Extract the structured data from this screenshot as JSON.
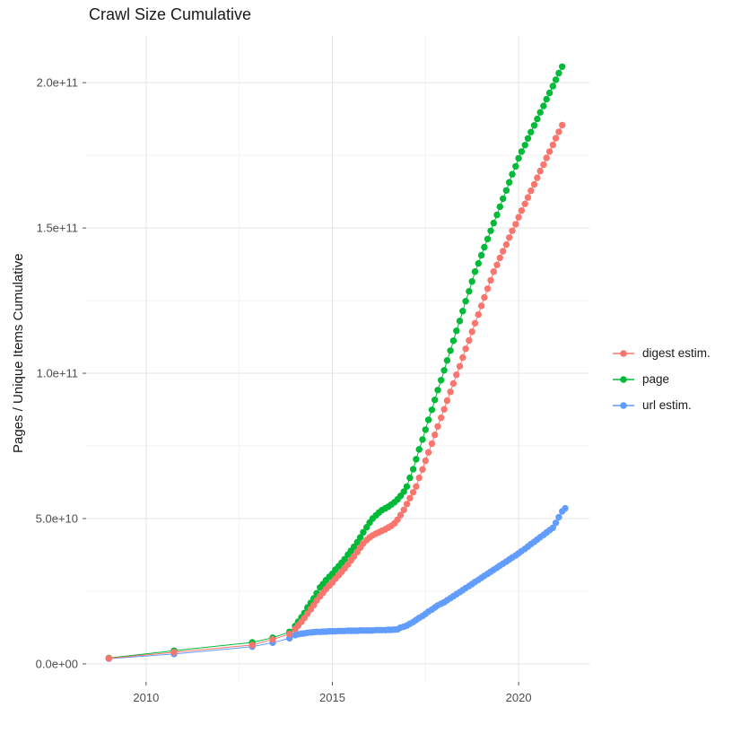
{
  "chart_data": {
    "type": "scatter",
    "title": "Crawl Size Cumulative",
    "xlabel": "",
    "ylabel": "Pages / Unique Items Cumulative",
    "value_unit": "pages, values stored in billions (1e9)",
    "grid": true,
    "legend_position": "right",
    "xlim": [
      2008.39,
      2021.9
    ],
    "ylim_billions": [
      -6.2,
      216.1
    ],
    "x_major_ticks": [
      {
        "value": 2010,
        "label": "2010"
      },
      {
        "value": 2015,
        "label": "2015"
      },
      {
        "value": 2020,
        "label": "2020"
      }
    ],
    "x_minor_ticks": [
      2012.5,
      2017.5
    ],
    "y_major_ticks": [
      {
        "value_billions": 0,
        "label": "0.0e+00"
      },
      {
        "value_billions": 50,
        "label": "5.0e+10"
      },
      {
        "value_billions": 100,
        "label": "1.0e+11"
      },
      {
        "value_billions": 150,
        "label": "1.5e+11"
      },
      {
        "value_billions": 200,
        "label": "2.0e+11"
      }
    ],
    "y_minor_ticks_billions": [
      25,
      75,
      125,
      175
    ],
    "series": [
      {
        "name": "digest estim.",
        "color": "#F8766D",
        "draw_order": 3,
        "points": [
          [
            2009.0,
            1.9
          ],
          [
            2010.75,
            4.0
          ],
          [
            2012.85,
            6.5
          ],
          [
            2013.4,
            8.4
          ],
          [
            2013.85,
            10.3
          ],
          [
            2014.0,
            12.0
          ],
          [
            2014.08,
            13.2
          ],
          [
            2014.17,
            14.5
          ],
          [
            2014.25,
            15.8
          ],
          [
            2014.33,
            17.3
          ],
          [
            2014.42,
            18.8
          ],
          [
            2014.5,
            20.2
          ],
          [
            2014.58,
            21.8
          ],
          [
            2014.67,
            23.3
          ],
          [
            2014.75,
            24.5
          ],
          [
            2014.83,
            25.8
          ],
          [
            2014.92,
            27.0
          ],
          [
            2015.0,
            28.0
          ],
          [
            2015.08,
            29.3
          ],
          [
            2015.17,
            30.5
          ],
          [
            2015.25,
            31.7
          ],
          [
            2015.33,
            32.9
          ],
          [
            2015.42,
            34.2
          ],
          [
            2015.5,
            35.6
          ],
          [
            2015.58,
            37.0
          ],
          [
            2015.67,
            38.5
          ],
          [
            2015.75,
            40.0
          ],
          [
            2015.83,
            41.4
          ],
          [
            2015.92,
            42.6
          ],
          [
            2016.0,
            43.5
          ],
          [
            2016.08,
            44.2
          ],
          [
            2016.17,
            44.8
          ],
          [
            2016.25,
            45.3
          ],
          [
            2016.33,
            45.8
          ],
          [
            2016.42,
            46.3
          ],
          [
            2016.5,
            46.9
          ],
          [
            2016.58,
            47.5
          ],
          [
            2016.67,
            48.4
          ],
          [
            2016.75,
            49.6
          ],
          [
            2016.83,
            51.2
          ],
          [
            2016.92,
            53.0
          ],
          [
            2017.0,
            55.0
          ],
          [
            2017.08,
            57.0
          ],
          [
            2017.17,
            59.0
          ],
          [
            2017.25,
            61.0
          ],
          [
            2017.33,
            64.0
          ],
          [
            2017.42,
            66.9
          ],
          [
            2017.5,
            69.9
          ],
          [
            2017.58,
            72.8
          ],
          [
            2017.67,
            75.8
          ],
          [
            2017.75,
            78.8
          ],
          [
            2017.83,
            81.7
          ],
          [
            2017.92,
            84.7
          ],
          [
            2018.0,
            87.6
          ],
          [
            2018.08,
            90.6
          ],
          [
            2018.17,
            93.6
          ],
          [
            2018.25,
            96.5
          ],
          [
            2018.33,
            99.5
          ],
          [
            2018.42,
            102.4
          ],
          [
            2018.5,
            105.4
          ],
          [
            2018.58,
            108.4
          ],
          [
            2018.67,
            111.3
          ],
          [
            2018.75,
            114.3
          ],
          [
            2018.83,
            117.2
          ],
          [
            2018.92,
            120.2
          ],
          [
            2019.0,
            123.2
          ],
          [
            2019.08,
            126.1
          ],
          [
            2019.17,
            129.1
          ],
          [
            2019.25,
            132.0
          ],
          [
            2019.33,
            135.0
          ],
          [
            2019.42,
            137.3
          ],
          [
            2019.5,
            139.7
          ],
          [
            2019.58,
            142.0
          ],
          [
            2019.67,
            144.3
          ],
          [
            2019.75,
            146.7
          ],
          [
            2019.83,
            149.0
          ],
          [
            2019.92,
            151.3
          ],
          [
            2020.0,
            153.7
          ],
          [
            2020.08,
            156.0
          ],
          [
            2020.17,
            158.3
          ],
          [
            2020.25,
            160.5
          ],
          [
            2020.33,
            162.8
          ],
          [
            2020.42,
            165.0
          ],
          [
            2020.5,
            167.3
          ],
          [
            2020.58,
            169.6
          ],
          [
            2020.67,
            171.8
          ],
          [
            2020.75,
            174.1
          ],
          [
            2020.83,
            176.3
          ],
          [
            2020.92,
            178.6
          ],
          [
            2021.0,
            180.9
          ],
          [
            2021.08,
            183.1
          ],
          [
            2021.17,
            185.4
          ]
        ]
      },
      {
        "name": "page",
        "color": "#00BA38",
        "draw_order": 2,
        "points": [
          [
            2009.0,
            2.0
          ],
          [
            2010.75,
            4.5
          ],
          [
            2012.85,
            7.4
          ],
          [
            2013.4,
            9.0
          ],
          [
            2013.85,
            11.0
          ],
          [
            2014.0,
            13.0
          ],
          [
            2014.08,
            14.5
          ],
          [
            2014.17,
            16.0
          ],
          [
            2014.25,
            17.5
          ],
          [
            2014.33,
            19.4
          ],
          [
            2014.42,
            21.0
          ],
          [
            2014.5,
            22.5
          ],
          [
            2014.58,
            24.3
          ],
          [
            2014.67,
            26.3
          ],
          [
            2014.75,
            27.5
          ],
          [
            2014.83,
            28.8
          ],
          [
            2014.92,
            30.0
          ],
          [
            2015.0,
            31.0
          ],
          [
            2015.08,
            32.4
          ],
          [
            2015.17,
            33.6
          ],
          [
            2015.25,
            34.8
          ],
          [
            2015.33,
            36.0
          ],
          [
            2015.42,
            37.6
          ],
          [
            2015.5,
            38.9
          ],
          [
            2015.58,
            40.3
          ],
          [
            2015.67,
            41.9
          ],
          [
            2015.75,
            43.5
          ],
          [
            2015.83,
            45.3
          ],
          [
            2015.92,
            47.0
          ],
          [
            2016.0,
            48.6
          ],
          [
            2016.08,
            50.0
          ],
          [
            2016.17,
            51.1
          ],
          [
            2016.25,
            52.1
          ],
          [
            2016.33,
            52.9
          ],
          [
            2016.42,
            53.5
          ],
          [
            2016.5,
            54.1
          ],
          [
            2016.58,
            54.8
          ],
          [
            2016.67,
            55.6
          ],
          [
            2016.75,
            56.6
          ],
          [
            2016.83,
            57.8
          ],
          [
            2016.92,
            59.3
          ],
          [
            2017.0,
            61.0
          ],
          [
            2017.08,
            64.0
          ],
          [
            2017.17,
            67.0
          ],
          [
            2017.25,
            70.4
          ],
          [
            2017.33,
            73.8
          ],
          [
            2017.42,
            77.2
          ],
          [
            2017.5,
            80.6
          ],
          [
            2017.58,
            84.0
          ],
          [
            2017.67,
            87.4
          ],
          [
            2017.75,
            90.8
          ],
          [
            2017.83,
            94.2
          ],
          [
            2017.92,
            97.6
          ],
          [
            2018.0,
            101.0
          ],
          [
            2018.08,
            104.4
          ],
          [
            2018.17,
            107.8
          ],
          [
            2018.25,
            111.2
          ],
          [
            2018.33,
            114.6
          ],
          [
            2018.42,
            118.0
          ],
          [
            2018.5,
            121.4
          ],
          [
            2018.58,
            124.8
          ],
          [
            2018.67,
            128.2
          ],
          [
            2018.75,
            131.6
          ],
          [
            2018.83,
            135.0
          ],
          [
            2018.92,
            137.8
          ],
          [
            2019.0,
            140.6
          ],
          [
            2019.08,
            143.4
          ],
          [
            2019.17,
            146.2
          ],
          [
            2019.25,
            149.0
          ],
          [
            2019.33,
            151.7
          ],
          [
            2019.42,
            154.5
          ],
          [
            2019.5,
            157.3
          ],
          [
            2019.58,
            160.1
          ],
          [
            2019.67,
            162.9
          ],
          [
            2019.75,
            165.7
          ],
          [
            2019.83,
            168.5
          ],
          [
            2019.92,
            171.2
          ],
          [
            2020.0,
            174.0
          ],
          [
            2020.08,
            176.3
          ],
          [
            2020.17,
            178.5
          ],
          [
            2020.25,
            180.8
          ],
          [
            2020.33,
            183.0
          ],
          [
            2020.42,
            185.3
          ],
          [
            2020.5,
            187.5
          ],
          [
            2020.58,
            189.8
          ],
          [
            2020.67,
            192.0
          ],
          [
            2020.75,
            194.3
          ],
          [
            2020.83,
            196.5
          ],
          [
            2020.92,
            198.8
          ],
          [
            2021.0,
            201.0
          ],
          [
            2021.08,
            203.3
          ],
          [
            2021.17,
            205.5
          ]
        ]
      },
      {
        "name": "url estim.",
        "color": "#619CFF",
        "draw_order": 1,
        "points": [
          [
            2009.0,
            1.8
          ],
          [
            2010.75,
            3.4
          ],
          [
            2012.85,
            5.9
          ],
          [
            2013.4,
            7.3
          ],
          [
            2013.85,
            8.8
          ],
          [
            2014.0,
            9.9
          ],
          [
            2014.08,
            10.2
          ],
          [
            2014.17,
            10.4
          ],
          [
            2014.25,
            10.5
          ],
          [
            2014.33,
            10.7
          ],
          [
            2014.42,
            10.8
          ],
          [
            2014.5,
            10.9
          ],
          [
            2014.58,
            11.0
          ],
          [
            2014.67,
            11.0
          ],
          [
            2014.75,
            11.1
          ],
          [
            2014.83,
            11.1
          ],
          [
            2014.92,
            11.2
          ],
          [
            2015.0,
            11.2
          ],
          [
            2015.08,
            11.2
          ],
          [
            2015.17,
            11.3
          ],
          [
            2015.25,
            11.3
          ],
          [
            2015.33,
            11.3
          ],
          [
            2015.42,
            11.4
          ],
          [
            2015.5,
            11.4
          ],
          [
            2015.58,
            11.4
          ],
          [
            2015.67,
            11.4
          ],
          [
            2015.75,
            11.5
          ],
          [
            2015.83,
            11.5
          ],
          [
            2015.92,
            11.5
          ],
          [
            2016.0,
            11.5
          ],
          [
            2016.08,
            11.5
          ],
          [
            2016.17,
            11.6
          ],
          [
            2016.25,
            11.6
          ],
          [
            2016.33,
            11.6
          ],
          [
            2016.42,
            11.6
          ],
          [
            2016.5,
            11.7
          ],
          [
            2016.58,
            11.7
          ],
          [
            2016.67,
            11.8
          ],
          [
            2016.75,
            11.9
          ],
          [
            2016.83,
            12.5
          ],
          [
            2016.92,
            12.8
          ],
          [
            2017.0,
            13.2
          ],
          [
            2017.08,
            13.8
          ],
          [
            2017.17,
            14.4
          ],
          [
            2017.25,
            15.1
          ],
          [
            2017.33,
            15.8
          ],
          [
            2017.42,
            16.5
          ],
          [
            2017.5,
            17.2
          ],
          [
            2017.58,
            18.0
          ],
          [
            2017.67,
            18.7
          ],
          [
            2017.75,
            19.4
          ],
          [
            2017.83,
            20.1
          ],
          [
            2017.92,
            20.7
          ],
          [
            2018.0,
            21.2
          ],
          [
            2018.08,
            21.9
          ],
          [
            2018.17,
            22.6
          ],
          [
            2018.25,
            23.3
          ],
          [
            2018.33,
            24.0
          ],
          [
            2018.42,
            24.7
          ],
          [
            2018.5,
            25.4
          ],
          [
            2018.58,
            26.1
          ],
          [
            2018.67,
            26.8
          ],
          [
            2018.75,
            27.5
          ],
          [
            2018.83,
            28.2
          ],
          [
            2018.92,
            28.9
          ],
          [
            2019.0,
            29.6
          ],
          [
            2019.08,
            30.3
          ],
          [
            2019.17,
            31.0
          ],
          [
            2019.25,
            31.7
          ],
          [
            2019.33,
            32.4
          ],
          [
            2019.42,
            33.1
          ],
          [
            2019.5,
            33.8
          ],
          [
            2019.58,
            34.5
          ],
          [
            2019.67,
            35.2
          ],
          [
            2019.75,
            35.9
          ],
          [
            2019.83,
            36.6
          ],
          [
            2019.92,
            37.3
          ],
          [
            2020.0,
            38.0
          ],
          [
            2020.08,
            38.8
          ],
          [
            2020.17,
            39.6
          ],
          [
            2020.25,
            40.4
          ],
          [
            2020.33,
            41.2
          ],
          [
            2020.42,
            42.0
          ],
          [
            2020.5,
            42.8
          ],
          [
            2020.58,
            43.6
          ],
          [
            2020.67,
            44.4
          ],
          [
            2020.75,
            45.2
          ],
          [
            2020.83,
            46.0
          ],
          [
            2020.92,
            46.8
          ],
          [
            2021.0,
            48.5
          ],
          [
            2021.08,
            50.5
          ],
          [
            2021.17,
            52.5
          ],
          [
            2021.25,
            53.5
          ]
        ]
      }
    ]
  }
}
